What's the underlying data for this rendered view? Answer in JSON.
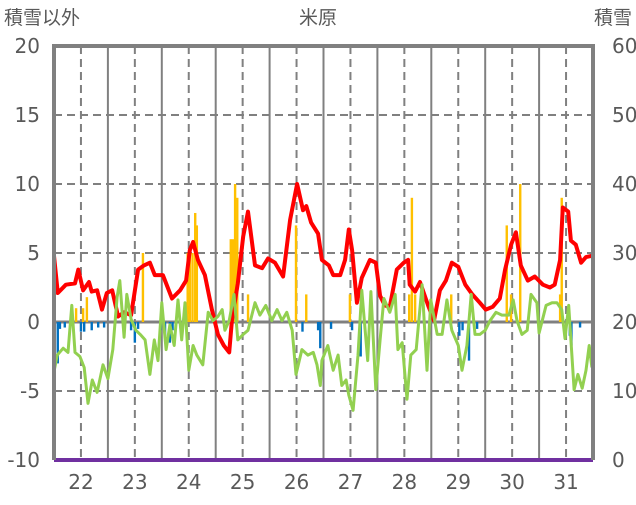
{
  "chart_data": {
    "type": "line",
    "title": "米原",
    "ylabel_left": "積雪以外",
    "ylabel_right": "積雪",
    "xlabel": "",
    "xlim_days": [
      22,
      32
    ],
    "ylim_left": [
      -10,
      20
    ],
    "ylim_right": [
      0,
      60
    ],
    "y_ticks_left": [
      "20",
      "15",
      "10",
      "5",
      "0",
      "-5",
      "-10"
    ],
    "y_ticks_right": [
      "60",
      "50",
      "40",
      "30",
      "20",
      "10",
      "0"
    ],
    "x_tick_labels": [
      "22",
      "23",
      "24",
      "25",
      "26",
      "27",
      "28",
      "29",
      "30",
      "31"
    ],
    "grid": true,
    "colors": {
      "red": "#ff0000",
      "green": "#92d050",
      "orange": "#ffc000",
      "blue": "#0070c0",
      "purple": "#7030a0",
      "axis": "#808080"
    },
    "series": [
      {
        "name": "red-line",
        "color": "#ff0000",
        "axis": "left",
        "type": "line",
        "points": [
          [
            22.0,
            4.8
          ],
          [
            22.07,
            2.1
          ],
          [
            22.22,
            2.7
          ],
          [
            22.39,
            2.8
          ],
          [
            22.45,
            3.8
          ],
          [
            22.54,
            2.3
          ],
          [
            22.65,
            2.9
          ],
          [
            22.7,
            2.2
          ],
          [
            22.8,
            2.3
          ],
          [
            22.89,
            0.9
          ],
          [
            22.98,
            2.1
          ],
          [
            23.08,
            2.3
          ],
          [
            23.19,
            0.4
          ],
          [
            23.3,
            0.7
          ],
          [
            23.43,
            0.5
          ],
          [
            23.56,
            3.8
          ],
          [
            23.67,
            4.1
          ],
          [
            23.78,
            4.3
          ],
          [
            23.87,
            3.4
          ],
          [
            24.02,
            3.4
          ],
          [
            24.19,
            1.7
          ],
          [
            24.34,
            2.3
          ],
          [
            24.45,
            3.0
          ],
          [
            24.52,
            5.2
          ],
          [
            24.58,
            5.8
          ],
          [
            24.67,
            4.5
          ],
          [
            24.8,
            3.4
          ],
          [
            24.93,
            0.9
          ],
          [
            25.04,
            -0.9
          ],
          [
            25.15,
            -1.7
          ],
          [
            25.25,
            -2.2
          ],
          [
            25.3,
            0.1
          ],
          [
            25.41,
            2.8
          ],
          [
            25.51,
            6.2
          ],
          [
            25.6,
            8.0
          ],
          [
            25.73,
            4.1
          ],
          [
            25.86,
            3.9
          ],
          [
            25.97,
            4.6
          ],
          [
            26.1,
            4.3
          ],
          [
            26.25,
            3.3
          ],
          [
            26.38,
            7.4
          ],
          [
            26.51,
            10.0
          ],
          [
            26.62,
            8.1
          ],
          [
            26.68,
            8.4
          ],
          [
            26.77,
            7.2
          ],
          [
            26.9,
            6.4
          ],
          [
            26.97,
            4.5
          ],
          [
            27.1,
            4.1
          ],
          [
            27.18,
            3.4
          ],
          [
            27.31,
            3.4
          ],
          [
            27.4,
            4.5
          ],
          [
            27.47,
            6.7
          ],
          [
            27.53,
            5.2
          ],
          [
            27.62,
            1.4
          ],
          [
            27.71,
            3.2
          ],
          [
            27.86,
            4.5
          ],
          [
            27.97,
            4.3
          ],
          [
            28.05,
            1.9
          ],
          [
            28.14,
            1.2
          ],
          [
            28.23,
            1.1
          ],
          [
            28.36,
            3.8
          ],
          [
            28.49,
            4.3
          ],
          [
            28.57,
            4.5
          ],
          [
            28.6,
            2.7
          ],
          [
            28.7,
            2.2
          ],
          [
            28.79,
            2.9
          ],
          [
            28.94,
            1.2
          ],
          [
            29.05,
            0.1
          ],
          [
            29.16,
            2.3
          ],
          [
            29.27,
            3.0
          ],
          [
            29.38,
            4.3
          ],
          [
            29.5,
            4.0
          ],
          [
            29.63,
            2.7
          ],
          [
            29.76,
            2.0
          ],
          [
            29.9,
            1.4
          ],
          [
            30.01,
            0.9
          ],
          [
            30.14,
            1.1
          ],
          [
            30.27,
            1.7
          ],
          [
            30.37,
            3.8
          ],
          [
            30.48,
            5.6
          ],
          [
            30.57,
            6.5
          ],
          [
            30.66,
            4.1
          ],
          [
            30.79,
            3.0
          ],
          [
            30.92,
            3.3
          ],
          [
            31.07,
            2.7
          ],
          [
            31.2,
            2.5
          ],
          [
            31.29,
            2.7
          ],
          [
            31.39,
            4.5
          ],
          [
            31.44,
            8.3
          ],
          [
            31.54,
            8.0
          ],
          [
            31.59,
            5.9
          ],
          [
            31.68,
            5.6
          ],
          [
            31.78,
            4.3
          ],
          [
            31.87,
            4.7
          ],
          [
            31.98,
            4.8
          ]
        ]
      },
      {
        "name": "green-line",
        "color": "#92d050",
        "axis": "left",
        "type": "line",
        "points": [
          [
            22.0,
            -3.6
          ],
          [
            22.06,
            -2.4
          ],
          [
            22.17,
            -1.9
          ],
          [
            22.26,
            -2.2
          ],
          [
            22.33,
            1.2
          ],
          [
            22.39,
            -2.2
          ],
          [
            22.48,
            -2.5
          ],
          [
            22.56,
            -3.3
          ],
          [
            22.63,
            -5.9
          ],
          [
            22.71,
            -4.2
          ],
          [
            22.8,
            -5.1
          ],
          [
            22.91,
            -3.1
          ],
          [
            23.0,
            -4.1
          ],
          [
            23.09,
            -2.0
          ],
          [
            23.17,
            1.8
          ],
          [
            23.22,
            3.0
          ],
          [
            23.3,
            -1.1
          ],
          [
            23.35,
            2.0
          ],
          [
            23.43,
            0.2
          ],
          [
            23.52,
            -0.6
          ],
          [
            23.6,
            -0.9
          ],
          [
            23.69,
            -1.3
          ],
          [
            23.78,
            -3.8
          ],
          [
            23.86,
            -1.3
          ],
          [
            23.93,
            -2.8
          ],
          [
            24.0,
            1.4
          ],
          [
            24.08,
            -2.0
          ],
          [
            24.15,
            -0.2
          ],
          [
            24.23,
            -1.7
          ],
          [
            24.3,
            1.6
          ],
          [
            24.37,
            -1.3
          ],
          [
            24.43,
            1.4
          ],
          [
            24.5,
            -3.5
          ],
          [
            24.58,
            -1.7
          ],
          [
            24.65,
            -2.4
          ],
          [
            24.76,
            -3.1
          ],
          [
            24.86,
            0.7
          ],
          [
            24.95,
            0.1
          ],
          [
            25.04,
            0.4
          ],
          [
            25.12,
            0.9
          ],
          [
            25.17,
            -0.6
          ],
          [
            25.25,
            0.1
          ],
          [
            25.34,
            2.0
          ],
          [
            25.41,
            -1.3
          ],
          [
            25.51,
            -0.9
          ],
          [
            25.6,
            -0.6
          ],
          [
            25.73,
            1.4
          ],
          [
            25.82,
            0.5
          ],
          [
            25.93,
            1.2
          ],
          [
            26.04,
            0.1
          ],
          [
            26.14,
            0.9
          ],
          [
            26.23,
            0.1
          ],
          [
            26.32,
            0.7
          ],
          [
            26.42,
            -0.6
          ],
          [
            26.49,
            -3.8
          ],
          [
            26.6,
            -2.0
          ],
          [
            26.71,
            -2.4
          ],
          [
            26.81,
            -2.2
          ],
          [
            26.88,
            -3.1
          ],
          [
            26.94,
            -4.6
          ],
          [
            26.97,
            -2.8
          ],
          [
            27.08,
            -1.7
          ],
          [
            27.18,
            -3.5
          ],
          [
            27.27,
            -2.4
          ],
          [
            27.34,
            -4.6
          ],
          [
            27.42,
            -4.2
          ],
          [
            27.47,
            -5.3
          ],
          [
            27.55,
            -6.4
          ],
          [
            27.64,
            -2.4
          ],
          [
            27.71,
            2.3
          ],
          [
            27.82,
            -2.8
          ],
          [
            27.88,
            2.2
          ],
          [
            27.97,
            -4.9
          ],
          [
            28.05,
            -1.3
          ],
          [
            28.12,
            1.7
          ],
          [
            28.23,
            0.7
          ],
          [
            28.33,
            2.0
          ],
          [
            28.38,
            -2.0
          ],
          [
            28.46,
            -1.5
          ],
          [
            28.55,
            -5.6
          ],
          [
            28.62,
            -2.4
          ],
          [
            28.72,
            -2.0
          ],
          [
            28.83,
            2.7
          ],
          [
            28.92,
            -3.5
          ],
          [
            28.99,
            1.6
          ],
          [
            29.11,
            -0.9
          ],
          [
            29.2,
            -0.9
          ],
          [
            29.29,
            1.6
          ],
          [
            29.38,
            -0.6
          ],
          [
            29.5,
            -1.7
          ],
          [
            29.57,
            -3.5
          ],
          [
            29.66,
            -1.7
          ],
          [
            29.74,
            2.0
          ],
          [
            29.81,
            -0.9
          ],
          [
            29.9,
            -0.9
          ],
          [
            30.0,
            -0.6
          ],
          [
            30.09,
            0.1
          ],
          [
            30.2,
            0.7
          ],
          [
            30.31,
            0.5
          ],
          [
            30.44,
            0.5
          ],
          [
            30.52,
            1.6
          ],
          [
            30.59,
            0.1
          ],
          [
            30.68,
            -0.9
          ],
          [
            30.78,
            -0.6
          ],
          [
            30.85,
            2.0
          ],
          [
            30.96,
            1.4
          ],
          [
            31.0,
            -0.8
          ],
          [
            31.13,
            1.2
          ],
          [
            31.24,
            1.4
          ],
          [
            31.33,
            1.4
          ],
          [
            31.42,
            0.9
          ],
          [
            31.48,
            -1.2
          ],
          [
            31.55,
            1.2
          ],
          [
            31.65,
            -4.9
          ],
          [
            31.72,
            -3.8
          ],
          [
            31.8,
            -4.8
          ],
          [
            31.87,
            -3.5
          ],
          [
            31.93,
            -1.7
          ],
          [
            31.98,
            -3.3
          ]
        ]
      },
      {
        "name": "orange-bars",
        "color": "#ffc000",
        "axis": "left",
        "type": "bar",
        "points": [
          [
            22.41,
            1.0
          ],
          [
            22.54,
            1.0
          ],
          [
            22.61,
            1.8
          ],
          [
            23.65,
            5.0
          ],
          [
            24.48,
            5.0
          ],
          [
            24.52,
            5.0
          ],
          [
            24.57,
            5.0
          ],
          [
            24.62,
            7.9
          ],
          [
            24.65,
            7.0
          ],
          [
            25.28,
            6.0
          ],
          [
            25.32,
            6.0
          ],
          [
            25.36,
            10.0
          ],
          [
            25.4,
            9.0
          ],
          [
            25.6,
            2.0
          ],
          [
            26.49,
            7.0
          ],
          [
            26.68,
            2.0
          ],
          [
            27.49,
            2.0
          ],
          [
            28.59,
            2.0
          ],
          [
            28.64,
            9.0
          ],
          [
            28.7,
            2.0
          ],
          [
            29.37,
            2.0
          ],
          [
            30.4,
            7.0
          ],
          [
            30.48,
            2.0
          ],
          [
            30.65,
            10.0
          ],
          [
            31.39,
            2.0
          ],
          [
            31.42,
            9.0
          ]
        ]
      },
      {
        "name": "blue-bars",
        "color": "#0070c0",
        "axis": "left",
        "type": "bar",
        "points": [
          [
            22.07,
            -3.0
          ],
          [
            22.11,
            -0.5
          ],
          [
            22.2,
            -0.4
          ],
          [
            22.5,
            -0.7
          ],
          [
            22.56,
            -0.7
          ],
          [
            22.7,
            -0.6
          ],
          [
            22.82,
            -0.4
          ],
          [
            22.93,
            -0.4
          ],
          [
            23.43,
            -0.6
          ],
          [
            23.5,
            -1.5
          ],
          [
            23.56,
            -0.5
          ],
          [
            23.98,
            -0.6
          ],
          [
            24.06,
            -1.0
          ],
          [
            24.15,
            -1.5
          ],
          [
            24.2,
            -0.6
          ],
          [
            26.61,
            -0.7
          ],
          [
            26.9,
            -0.6
          ],
          [
            26.94,
            -1.9
          ],
          [
            27.14,
            -0.5
          ],
          [
            27.53,
            -0.6
          ],
          [
            27.69,
            -2.5
          ],
          [
            29.52,
            -1.0
          ],
          [
            29.58,
            -0.6
          ],
          [
            29.7,
            -2.8
          ],
          [
            29.85,
            -0.5
          ],
          [
            31.57,
            -1.0
          ],
          [
            31.6,
            -1.7
          ],
          [
            31.76,
            -0.4
          ]
        ]
      },
      {
        "name": "snow-depth-line",
        "color": "#7030a0",
        "axis": "right",
        "type": "line",
        "points": [
          [
            22.0,
            0
          ],
          [
            32.0,
            0
          ]
        ]
      }
    ]
  }
}
